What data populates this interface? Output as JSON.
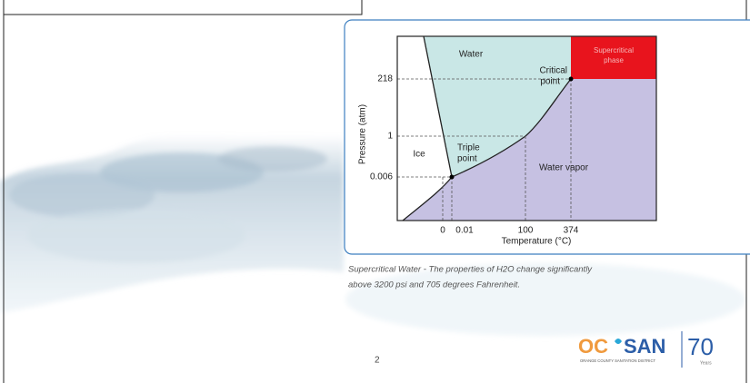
{
  "diagram": {
    "y_axis_label": "Pressure (atm)",
    "x_axis_label": "Temperature (°C)",
    "y_ticks": [
      "218",
      "1",
      "0.006"
    ],
    "x_ticks": [
      "0",
      "0.01",
      "100",
      "374"
    ],
    "regions": {
      "water": "Water",
      "supercritical": [
        "Supercritical",
        "phase"
      ],
      "ice": "Ice",
      "vapor": "Water vapor"
    },
    "points": {
      "critical": [
        "Critical",
        "point"
      ],
      "triple": [
        "Triple",
        "point"
      ]
    }
  },
  "caption": [
    "Supercritical Water - The properties of H2O change significantly",
    "above 3200 psi and 705 degrees Fahrenheit."
  ],
  "page_number": "2",
  "logo": {
    "left": "OC",
    "right": "SAN",
    "subtitle": "ORANGE COUNTY SANITATION DISTRICT",
    "anniversary": "70",
    "anniversary_label": "Years"
  }
}
